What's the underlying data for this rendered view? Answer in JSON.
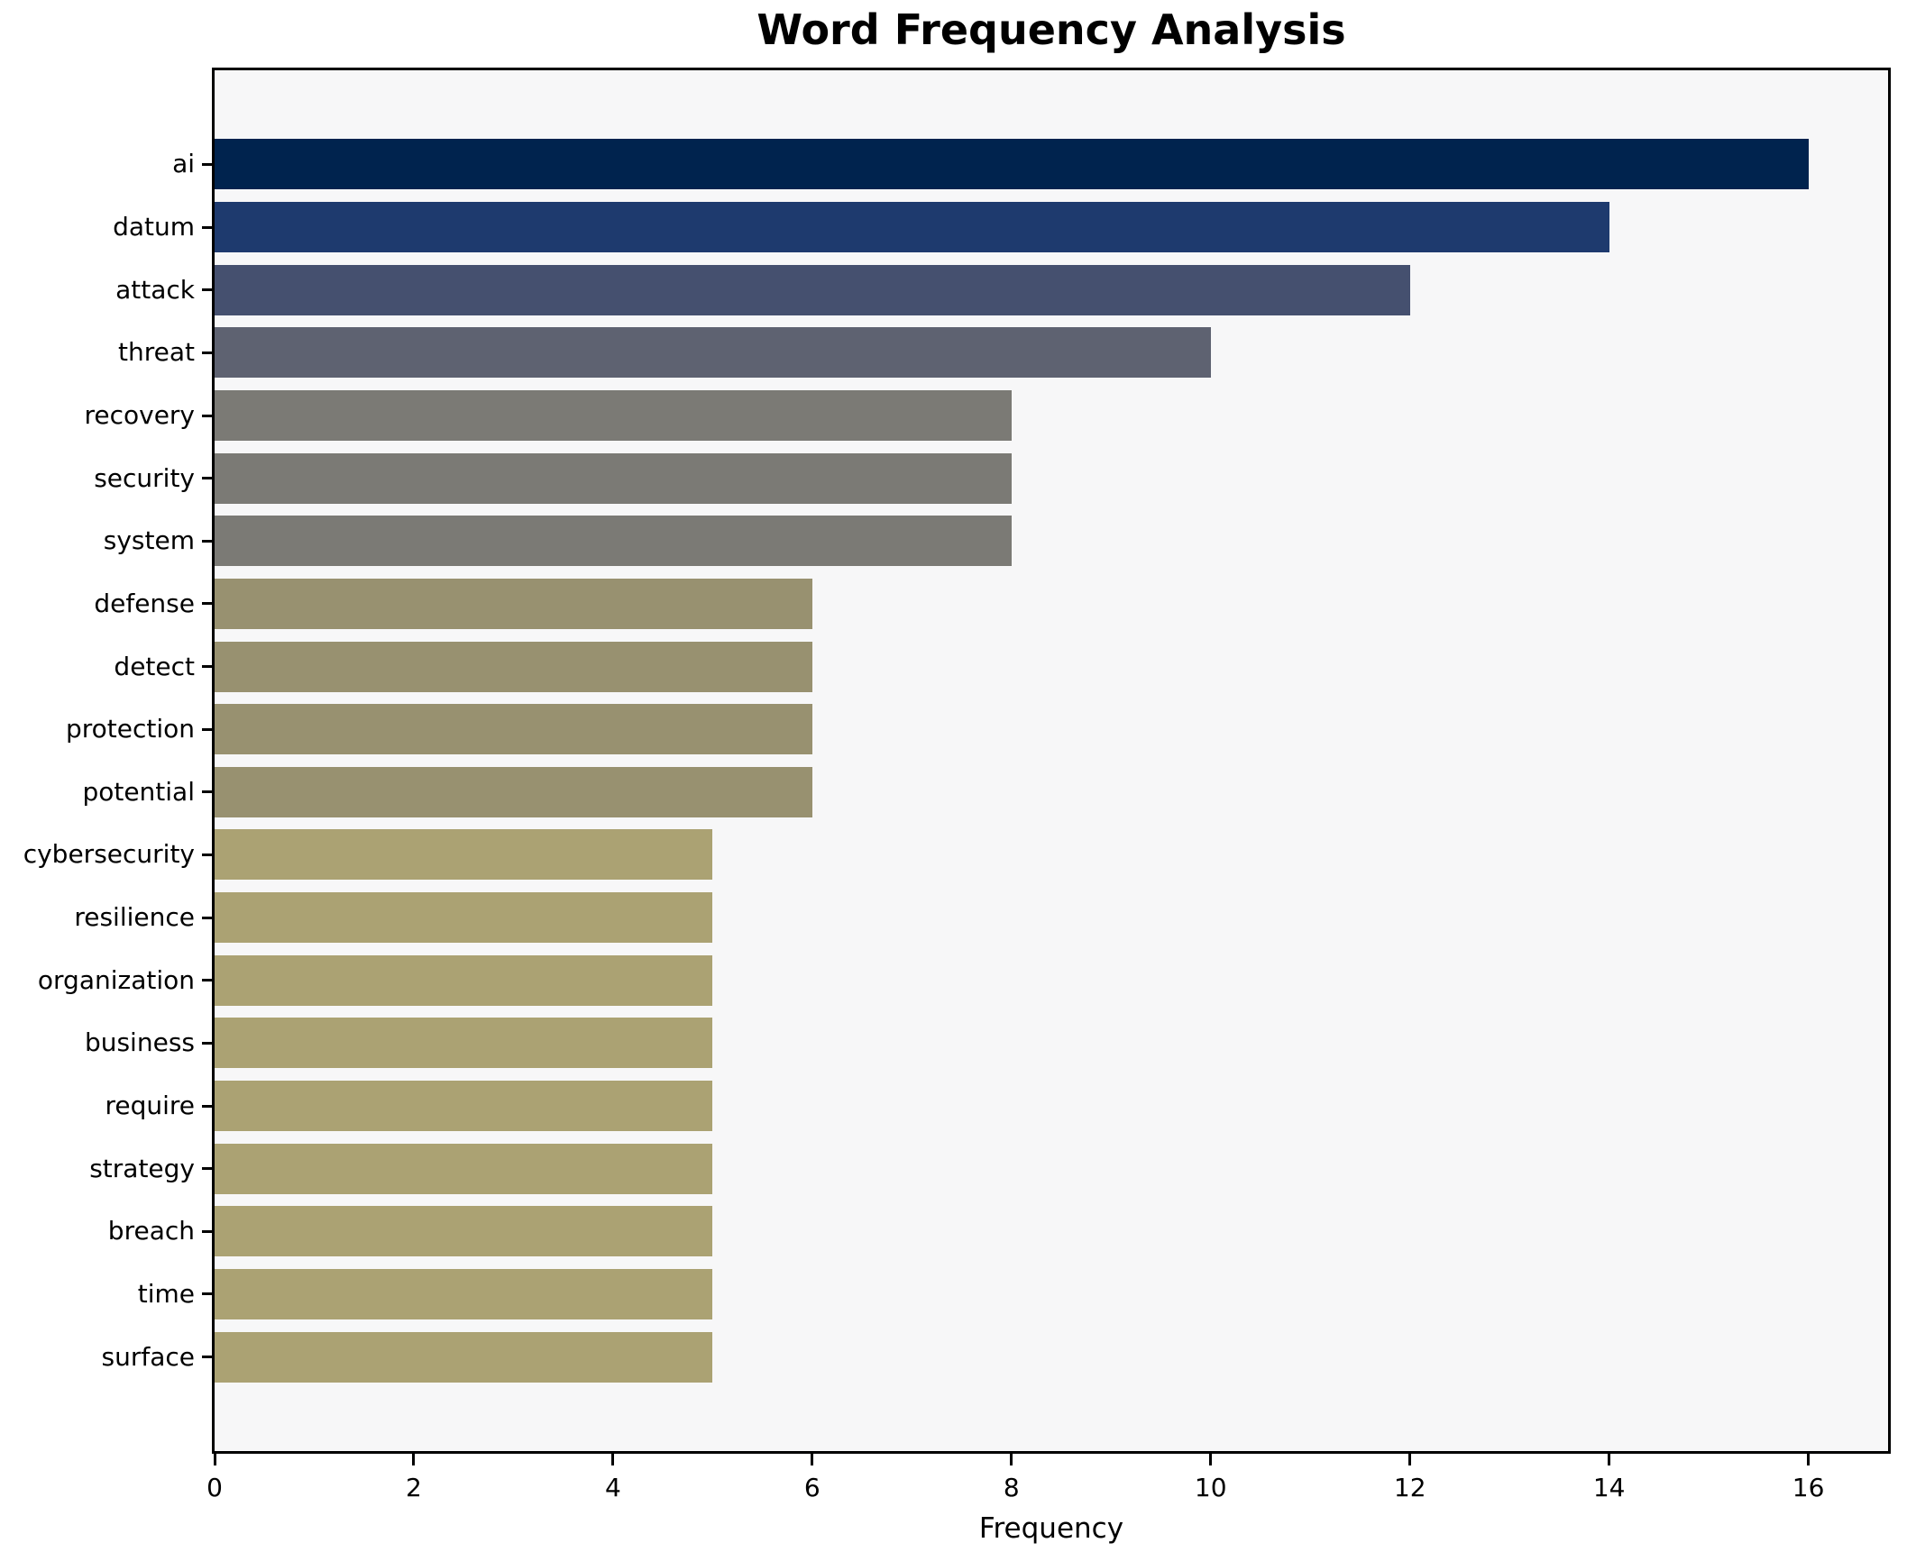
{
  "chart_data": {
    "type": "bar",
    "orientation": "horizontal",
    "title": "Word Frequency Analysis",
    "xlabel": "Frequency",
    "ylabel": "",
    "categories": [
      "ai",
      "datum",
      "attack",
      "threat",
      "recovery",
      "security",
      "system",
      "defense",
      "detect",
      "protection",
      "potential",
      "cybersecurity",
      "resilience",
      "organization",
      "business",
      "require",
      "strategy",
      "breach",
      "time",
      "surface"
    ],
    "values": [
      16,
      14,
      12,
      10,
      8,
      8,
      8,
      6,
      6,
      6,
      6,
      5,
      5,
      5,
      5,
      5,
      5,
      5,
      5,
      5
    ],
    "bar_colors": [
      "#00234e",
      "#1e3a6e",
      "#45506f",
      "#5e6271",
      "#7b7a75",
      "#7b7a75",
      "#7b7a75",
      "#989170",
      "#989170",
      "#989170",
      "#989170",
      "#aba273",
      "#aba273",
      "#aba273",
      "#aba273",
      "#aba273",
      "#aba273",
      "#aba273",
      "#aba273",
      "#aba273"
    ],
    "xlim": [
      0,
      16.8
    ],
    "xticks": [
      0,
      2,
      4,
      6,
      8,
      10,
      12,
      14,
      16
    ],
    "grid": false,
    "legend": "none",
    "bar_relative_height": 0.8
  },
  "style": {
    "plot_background": "#f7f7f8",
    "figure_background": "#ffffff",
    "spine_color": "#000000",
    "text_color": "#000000"
  }
}
